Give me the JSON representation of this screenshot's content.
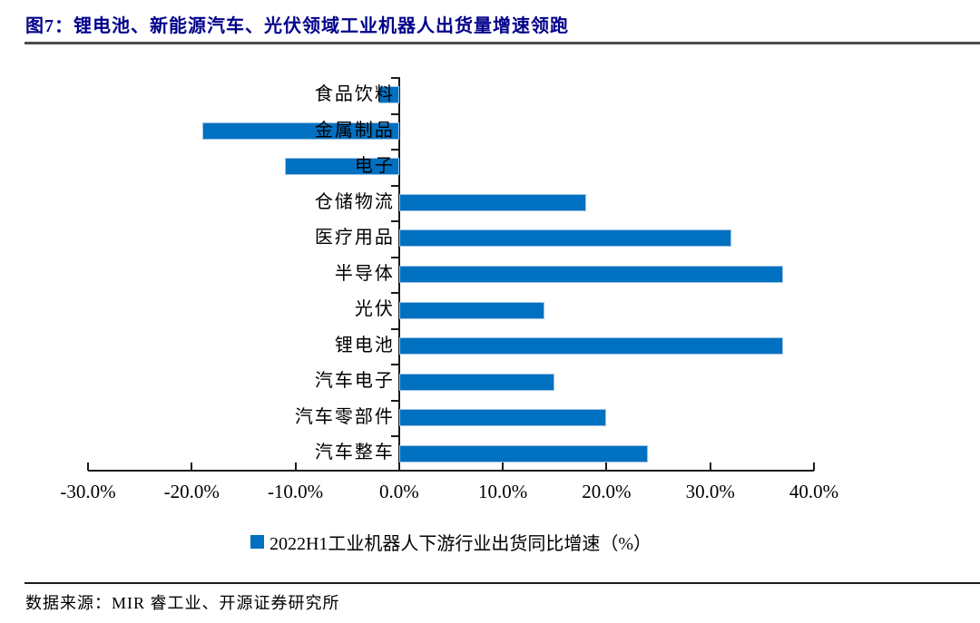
{
  "title": {
    "text": "图7：锂电池、新能源汽车、光伏领域工业机器人出货量增速领跑"
  },
  "chart_data": {
    "type": "bar",
    "orientation": "horizontal",
    "title": "图7：锂电池、新能源汽车、光伏领域工业机器人出货量增速领跑",
    "categories": [
      "食品饮料",
      "金属制品",
      "电子",
      "仓储物流",
      "医疗用品",
      "半导体",
      "光伏",
      "锂电池",
      "汽车电子",
      "汽车零部件",
      "汽车整车"
    ],
    "values": [
      -2.0,
      -19.0,
      -11.0,
      18.0,
      32.0,
      37.0,
      14.0,
      37.0,
      15.0,
      20.0,
      24.0
    ],
    "unit": "%",
    "xlim": [
      -30,
      40
    ],
    "x_tick_values": [
      -30,
      -20,
      -10,
      0,
      10,
      20,
      30,
      40
    ],
    "x_tick_labels": [
      "-30.0%",
      "-20.0%",
      "-10.0%",
      "0.0%",
      "10.0%",
      "20.0%",
      "30.0%",
      "40.0%"
    ],
    "grid": false,
    "legend_position": "bottom",
    "legend": "2022H1工业机器人下游行业出货同比增速（%）",
    "bar_color": "#0070C0",
    "bar_border_color": "#9DC3E6"
  },
  "legend": {
    "label": "2022H1工业机器人下游行业出货同比增速（%）"
  },
  "source": {
    "text": "数据来源：MIR 睿工业、开源证券研究所"
  },
  "colors": {
    "title": "#00008B",
    "bar": "#0070C0",
    "bar_border": "#9DC3E6",
    "axis": "#1a1a1a",
    "title_rule": "#4d4d4d"
  }
}
